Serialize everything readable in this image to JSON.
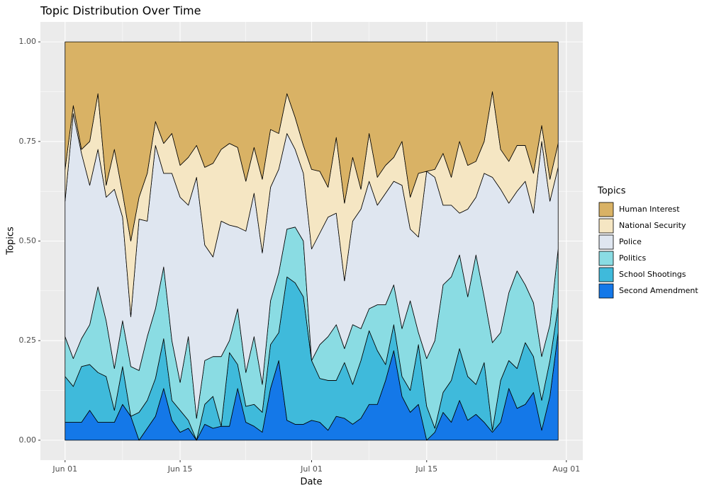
{
  "chart_data": {
    "type": "stacked_area",
    "title": "Topic Distribution Over Time",
    "x_label": "Date",
    "y_label": "Topics",
    "legend_title": "Topics",
    "legend_position": "right",
    "grid": true,
    "x": [
      "Jun 01",
      "Jun 02",
      "Jun 03",
      "Jun 04",
      "Jun 05",
      "Jun 06",
      "Jun 07",
      "Jun 08",
      "Jun 09",
      "Jun 10",
      "Jun 11",
      "Jun 12",
      "Jun 13",
      "Jun 14",
      "Jun 15",
      "Jun 16",
      "Jun 17",
      "Jun 18",
      "Jun 19",
      "Jun 20",
      "Jun 21",
      "Jun 22",
      "Jun 23",
      "Jun 24",
      "Jun 25",
      "Jun 26",
      "Jun 27",
      "Jun 28",
      "Jun 29",
      "Jun 30",
      "Jul 01",
      "Jul 02",
      "Jul 03",
      "Jul 04",
      "Jul 05",
      "Jul 06",
      "Jul 07",
      "Jul 08",
      "Jul 09",
      "Jul 10",
      "Jul 11",
      "Jul 12",
      "Jul 13",
      "Jul 14",
      "Jul 15",
      "Jul 16",
      "Jul 17",
      "Jul 18",
      "Jul 19",
      "Jul 20",
      "Jul 21",
      "Jul 22",
      "Jul 23",
      "Jul 24",
      "Jul 25",
      "Jul 26",
      "Jul 27",
      "Jul 28",
      "Jul 29",
      "Jul 30",
      "Jul 31"
    ],
    "xlim": [
      "May 29",
      "Aug 03"
    ],
    "xticks": [
      "Jun 01",
      "Jun 15",
      "Jul 01",
      "Jul 15",
      "Aug 01"
    ],
    "ylim": [
      -0.05,
      1.05
    ],
    "yticks": [
      {
        "value": 0,
        "label": "0.00"
      },
      {
        "value": 0.25,
        "label": "0.25"
      },
      {
        "value": 0.5,
        "label": "0.50"
      },
      {
        "value": 0.75,
        "label": "0.75"
      },
      {
        "value": 1,
        "label": "1.00"
      }
    ],
    "series": [
      {
        "name": "Human Interest",
        "color": "#D9B265",
        "values": [
          0.32,
          0.16,
          0.27,
          0.25,
          0.13,
          0.36,
          0.27,
          0.38,
          0.5,
          0.39,
          0.33,
          0.2,
          0.255,
          0.23,
          0.31,
          0.29,
          0.26,
          0.315,
          0.305,
          0.27,
          0.255,
          0.265,
          0.35,
          0.265,
          0.345,
          0.22,
          0.23,
          0.13,
          0.19,
          0.26,
          0.32,
          0.325,
          0.365,
          0.24,
          0.405,
          0.29,
          0.37,
          0.23,
          0.34,
          0.31,
          0.29,
          0.25,
          0.39,
          0.33,
          0.325,
          0.32,
          0.28,
          0.34,
          0.25,
          0.31,
          0.3,
          0.25,
          0.125,
          0.27,
          0.3,
          0.26,
          0.26,
          0.33,
          0.21,
          0.345,
          0.255
        ]
      },
      {
        "name": "National Security",
        "color": "#F5E6C3",
        "values": [
          0.08,
          0.02,
          0.01,
          0.11,
          0.14,
          0.03,
          0.1,
          0.06,
          0.19,
          0.055,
          0.12,
          0.06,
          0.075,
          0.1,
          0.08,
          0.12,
          0.08,
          0.195,
          0.235,
          0.18,
          0.205,
          0.2,
          0.125,
          0.115,
          0.185,
          0.145,
          0.09,
          0.1,
          0.08,
          0.07,
          0.2,
          0.155,
          0.075,
          0.19,
          0.195,
          0.16,
          0.05,
          0.12,
          0.07,
          0.07,
          0.06,
          0.11,
          0.08,
          0.16,
          0,
          0.02,
          0.13,
          0.07,
          0.18,
          0.11,
          0.09,
          0.08,
          0.215,
          0.1,
          0.105,
          0.115,
          0.09,
          0.1,
          0.04,
          0.055,
          0.06
        ]
      },
      {
        "name": "Police",
        "color": "#DFE6F0",
        "values": [
          0.34,
          0.615,
          0.465,
          0.35,
          0.345,
          0.31,
          0.45,
          0.26,
          0.125,
          0.38,
          0.29,
          0.41,
          0.235,
          0.42,
          0.465,
          0.33,
          0.605,
          0.29,
          0.25,
          0.34,
          0.29,
          0.205,
          0.355,
          0.36,
          0.33,
          0.285,
          0.26,
          0.24,
          0.195,
          0.17,
          0.28,
          0.28,
          0.3,
          0.28,
          0.17,
          0.26,
          0.3,
          0.32,
          0.25,
          0.28,
          0.26,
          0.36,
          0.18,
          0.24,
          0.47,
          0.41,
          0.2,
          0.18,
          0.105,
          0.22,
          0.145,
          0.31,
          0.415,
          0.36,
          0.225,
          0.2,
          0.26,
          0.225,
          0.54,
          0.31,
          0.205
        ]
      },
      {
        "name": "Politics",
        "color": "#8ADCE3",
        "values": [
          0.1,
          0.07,
          0.07,
          0.1,
          0.215,
          0.14,
          0.105,
          0.115,
          0.125,
          0.105,
          0.16,
          0.175,
          0.18,
          0.15,
          0.07,
          0.21,
          0.055,
          0.11,
          0.1,
          0.175,
          0.03,
          0.14,
          0.085,
          0.17,
          0.07,
          0.11,
          0.15,
          0.12,
          0.14,
          0.14,
          0,
          0.085,
          0.11,
          0.14,
          0.035,
          0.15,
          0.08,
          0.055,
          0.115,
          0.15,
          0.1,
          0.12,
          0.225,
          0.03,
          0.12,
          0.22,
          0.27,
          0.26,
          0.235,
          0.2,
          0.325,
          0.165,
          0.22,
          0.12,
          0.17,
          0.245,
          0.145,
          0.135,
          0.11,
          0.09,
          0.145
        ]
      },
      {
        "name": "School Shootings",
        "color": "#3FBADB",
        "values": [
          0.115,
          0.09,
          0.14,
          0.115,
          0.125,
          0.115,
          0.03,
          0.095,
          0,
          0.07,
          0.07,
          0.095,
          0.125,
          0.05,
          0.055,
          0.02,
          0,
          0.05,
          0.08,
          0,
          0.185,
          0.06,
          0.04,
          0.055,
          0.05,
          0.11,
          0.07,
          0.36,
          0.355,
          0.32,
          0.15,
          0.11,
          0.125,
          0.09,
          0.14,
          0.1,
          0.145,
          0.185,
          0.135,
          0.04,
          0.065,
          0.05,
          0.055,
          0.15,
          0.085,
          0.01,
          0.05,
          0.105,
          0.13,
          0.11,
          0.075,
          0.15,
          0.005,
          0.105,
          0.07,
          0.1,
          0.155,
          0.09,
          0.075,
          0.09,
          0.065
        ]
      },
      {
        "name": "Second Amendment",
        "color": "#1478E8",
        "values": [
          0.045,
          0.045,
          0.045,
          0.075,
          0.045,
          0.045,
          0.045,
          0.09,
          0.06,
          0,
          0.03,
          0.06,
          0.13,
          0.05,
          0.02,
          0.03,
          0,
          0.04,
          0.03,
          0.035,
          0.035,
          0.13,
          0.045,
          0.035,
          0.02,
          0.13,
          0.2,
          0.05,
          0.04,
          0.04,
          0.05,
          0.045,
          0.025,
          0.06,
          0.055,
          0.04,
          0.055,
          0.09,
          0.09,
          0.15,
          0.225,
          0.11,
          0.07,
          0.09,
          0,
          0.02,
          0.07,
          0.045,
          0.1,
          0.05,
          0.065,
          0.045,
          0.02,
          0.045,
          0.13,
          0.08,
          0.09,
          0.12,
          0.025,
          0.11,
          0.27
        ]
      }
    ]
  }
}
